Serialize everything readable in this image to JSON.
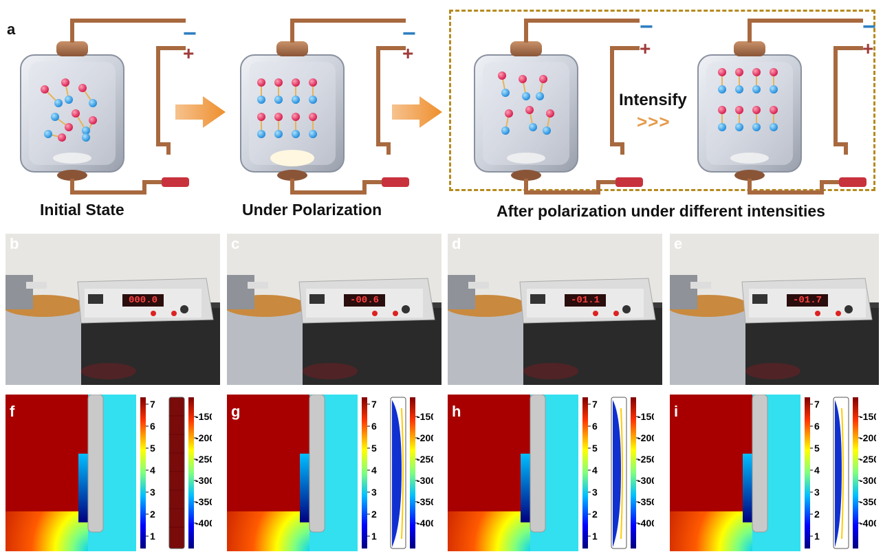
{
  "panels": {
    "a": "a",
    "b": "b",
    "c": "c",
    "d": "d",
    "e": "e",
    "f": "f",
    "g": "g",
    "h": "h",
    "i": "i"
  },
  "captions": {
    "initial": "Initial State",
    "under": "Under Polarization",
    "after": "After polarization under different intensities"
  },
  "intensify_label": "Intensify",
  "intensify_chevrons": ">>>",
  "electrode_signs": {
    "minus": "−",
    "plus": "+"
  },
  "meter_readings": [
    "000.0",
    "-00.6",
    "-01.1",
    "-01.7"
  ],
  "colorbar_left_ticks": [
    "7",
    "6",
    "5",
    "4",
    "3",
    "2",
    "1"
  ],
  "colorbar_right_ticks": [
    "-150",
    "-200",
    "-250",
    "-300",
    "-350",
    "-400"
  ],
  "colors": {
    "arrow": "#ee8f2e",
    "dash_box": "#b58a1e",
    "minus_sign": "#2f7fc1",
    "plus_sign": "#a13a3a",
    "field_red": "#a80000",
    "field_cyan": "#33e0ef",
    "electrode_gray": "#c9c9c9"
  }
}
